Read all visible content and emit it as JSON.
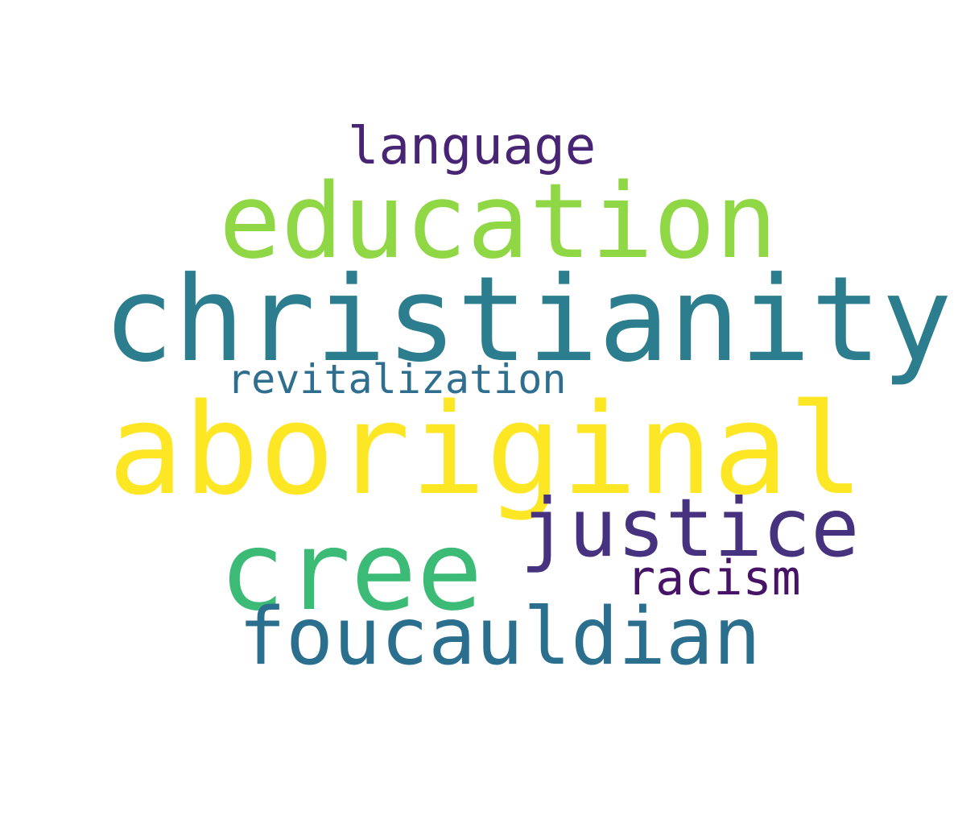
{
  "words": [
    {
      "text": "language",
      "color": "#482475"
    },
    {
      "text": "education",
      "color": "#8fd744"
    },
    {
      "text": "christianity",
      "color": "#2c7e8e"
    },
    {
      "text": "revitalization",
      "color": "#2e6e8e"
    },
    {
      "text": "aboriginal",
      "color": "#fde725"
    },
    {
      "text": "justice",
      "color": "#46327e"
    },
    {
      "text": "cree",
      "color": "#3bbb75"
    },
    {
      "text": "racism",
      "color": "#471366"
    },
    {
      "text": "foucauldian",
      "color": "#2b6f8e"
    }
  ]
}
